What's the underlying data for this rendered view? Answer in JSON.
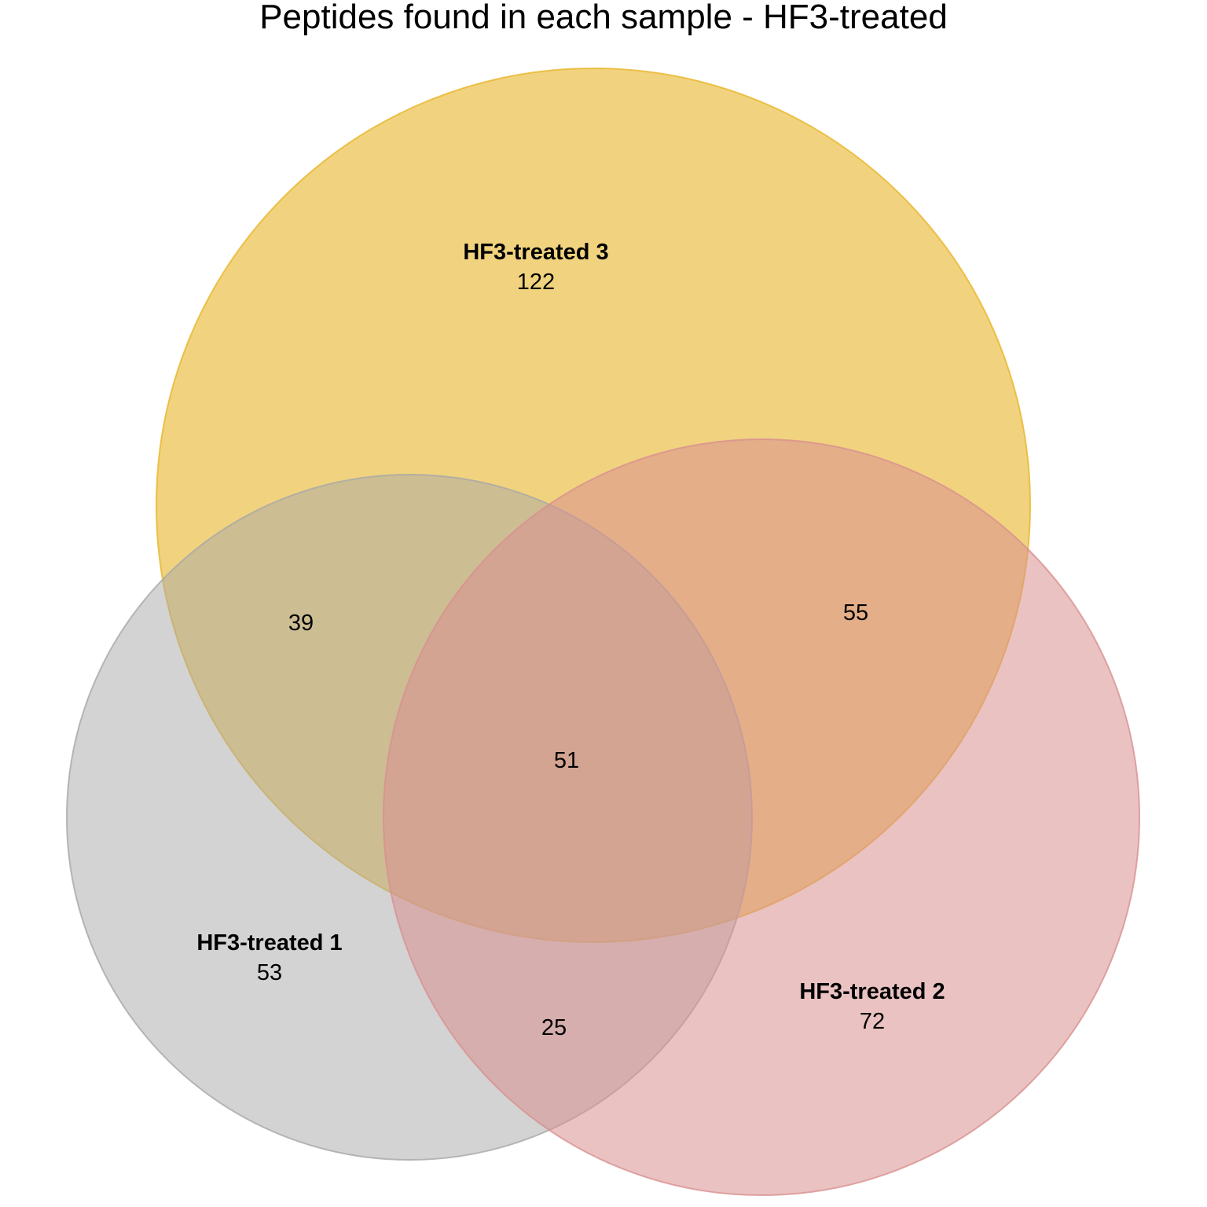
{
  "title": "Peptides found in each sample - HF3-treated",
  "sets": [
    {
      "id": "hf3_1",
      "label": "HF3-treated 1",
      "only": "53",
      "color": "#a8a8a8"
    },
    {
      "id": "hf3_2",
      "label": "HF3-treated 2",
      "only": "72",
      "color": "#d99090"
    },
    {
      "id": "hf3_3",
      "label": "HF3-treated 3",
      "only": "122",
      "color": "#e8b52a"
    }
  ],
  "intersections": {
    "hf3_1_and_hf3_3": "39",
    "hf3_2_and_hf3_3": "55",
    "hf3_1_and_hf3_2": "25",
    "all_three": "51"
  }
}
